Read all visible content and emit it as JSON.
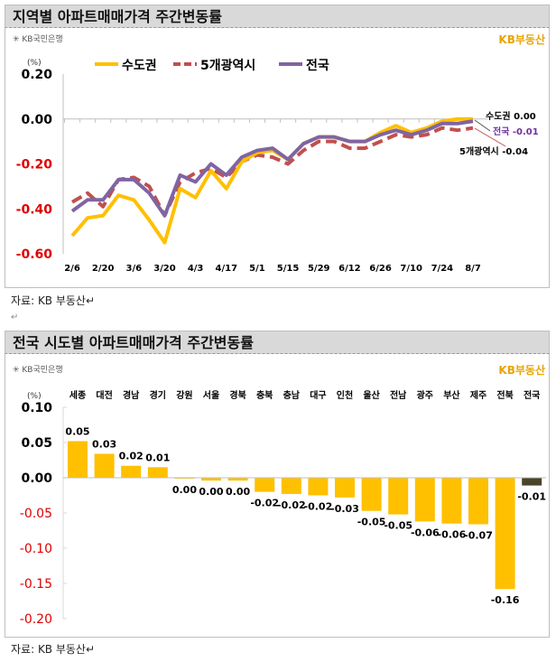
{
  "chart_data": [
    {
      "type": "line",
      "title": "지역별 아파트매매가격 주간변동률",
      "ylabel": "(%)",
      "ylim": [
        -0.6,
        0.2
      ],
      "yticks": [
        "0.20",
        "0.00",
        "-0.20",
        "-0.40",
        "-0.60"
      ],
      "x": [
        "2/6",
        "2/13",
        "2/20",
        "2/27",
        "3/6",
        "3/13",
        "3/20",
        "3/27",
        "4/3",
        "4/10",
        "4/17",
        "4/24",
        "5/1",
        "5/8",
        "5/15",
        "5/22",
        "5/29",
        "6/5",
        "6/12",
        "6/19",
        "6/26",
        "7/3",
        "7/10",
        "7/17",
        "7/24",
        "7/31",
        "8/7"
      ],
      "xtick_labels": [
        "2/6",
        "2/20",
        "3/6",
        "3/20",
        "4/3",
        "4/17",
        "5/1",
        "5/15",
        "5/29",
        "6/12",
        "6/26",
        "7/10",
        "7/24",
        "8/7"
      ],
      "series": [
        {
          "name": "수도권",
          "color": "#ffc000",
          "style": "solid",
          "end_label": "수도권 0.00",
          "values": [
            -0.52,
            -0.44,
            -0.43,
            -0.34,
            -0.36,
            -0.45,
            -0.55,
            -0.31,
            -0.35,
            -0.23,
            -0.31,
            -0.19,
            -0.15,
            -0.14,
            -0.18,
            -0.11,
            -0.08,
            -0.08,
            -0.1,
            -0.1,
            -0.06,
            -0.03,
            -0.06,
            -0.04,
            -0.01,
            0.0,
            0.0
          ]
        },
        {
          "name": "5개광역시",
          "color": "#c0504d",
          "style": "dashed",
          "end_label": "5개광역시 -0.04",
          "values": [
            -0.37,
            -0.33,
            -0.39,
            -0.27,
            -0.26,
            -0.3,
            -0.43,
            -0.28,
            -0.24,
            -0.22,
            -0.26,
            -0.19,
            -0.16,
            -0.17,
            -0.2,
            -0.14,
            -0.1,
            -0.1,
            -0.13,
            -0.13,
            -0.1,
            -0.07,
            -0.08,
            -0.07,
            -0.04,
            -0.05,
            -0.04
          ]
        },
        {
          "name": "전국",
          "color": "#8064a2",
          "style": "solid",
          "end_label": "전국 -0.01",
          "values": [
            -0.41,
            -0.36,
            -0.36,
            -0.27,
            -0.27,
            -0.33,
            -0.43,
            -0.25,
            -0.28,
            -0.2,
            -0.25,
            -0.17,
            -0.14,
            -0.13,
            -0.18,
            -0.11,
            -0.08,
            -0.08,
            -0.1,
            -0.1,
            -0.07,
            -0.05,
            -0.07,
            -0.05,
            -0.02,
            -0.02,
            -0.01
          ]
        }
      ],
      "legend": "top",
      "grid": false
    },
    {
      "type": "bar",
      "title": "전국 시도별 아파트매매가격 주간변동률",
      "ylabel": "(%)",
      "ylim": [
        -0.2,
        0.1
      ],
      "yticks": [
        "0.10",
        "0.05",
        "0.00",
        "-0.05",
        "-0.10",
        "-0.15",
        "-0.20"
      ],
      "categories": [
        "세종",
        "대전",
        "경남",
        "경기",
        "강원",
        "서울",
        "경북",
        "충북",
        "충남",
        "대구",
        "인천",
        "울산",
        "전남",
        "광주",
        "부산",
        "제주",
        "전북",
        "전국"
      ],
      "values": [
        0.052,
        0.034,
        0.017,
        0.015,
        -0.001,
        -0.004,
        -0.004,
        -0.02,
        -0.023,
        -0.025,
        -0.028,
        -0.047,
        -0.052,
        -0.062,
        -0.065,
        -0.066,
        -0.158,
        -0.011
      ],
      "data_labels": [
        "0.05",
        "0.03",
        "0.02",
        "0.01",
        "0.00",
        "0.00",
        "0.00",
        "-0.02",
        "-0.02",
        "-0.02",
        "-0.03",
        "-0.05",
        "-0.05",
        "-0.06",
        "-0.06",
        "-0.07",
        "-0.16",
        "-0.01"
      ],
      "colors": {
        "bar": "#ffc000",
        "total": "#4a452a",
        "positive_tick": "#000000",
        "negative_tick": "#e00000"
      },
      "grid": false
    }
  ],
  "logos": {
    "left": "KB국민은행",
    "right": "KB부동산"
  },
  "source": "자료: KB 부동산↵",
  "para_mark": "↵"
}
